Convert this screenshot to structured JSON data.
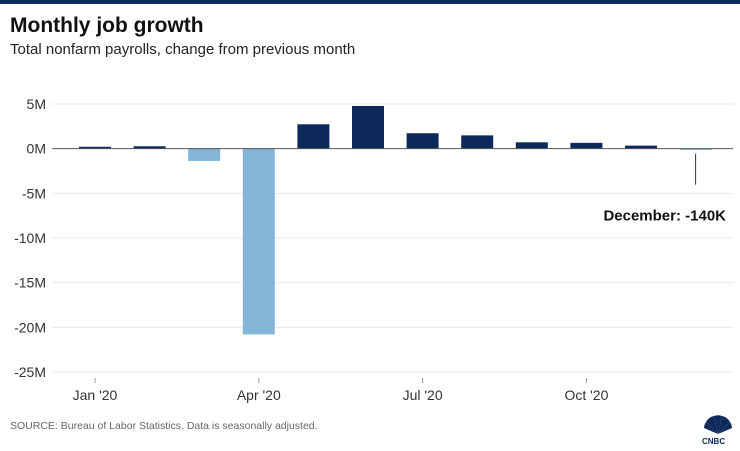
{
  "header": {
    "title": "Monthly job growth",
    "subtitle": "Total nonfarm payrolls, change from previous month"
  },
  "footer": {
    "source": "SOURCE: Bureau of Labor Statistics. Data is seasonally adjusted.",
    "logo_text": "CNBC"
  },
  "colors": {
    "positive": "#0e2a5c",
    "negative": "#85b4d9",
    "brand_bar": "#0e2a5c",
    "gridline": "#e8e8e8",
    "zeroline": "#555555"
  },
  "chart_data": {
    "type": "bar",
    "categories": [
      "Jan '20",
      "Feb '20",
      "Mar '20",
      "Apr '20",
      "May '20",
      "Jun '20",
      "Jul '20",
      "Aug '20",
      "Sep '20",
      "Oct '20",
      "Nov '20",
      "Dec '20"
    ],
    "values": [
      0.21,
      0.27,
      -1.37,
      -20.79,
      2.73,
      4.78,
      1.73,
      1.49,
      0.71,
      0.65,
      0.34,
      -0.14
    ],
    "unit": "M",
    "ylim": [
      -25,
      5
    ],
    "yticks": [
      5,
      0,
      -5,
      -10,
      -15,
      -20,
      -25
    ],
    "ytick_labels": [
      "5M",
      "0M",
      "-5M",
      "-10M",
      "-15M",
      "-20M",
      "-25M"
    ],
    "xtick_labels": [
      {
        "index": 0,
        "label": "Jan '20"
      },
      {
        "index": 3,
        "label": "Apr '20"
      },
      {
        "index": 6,
        "label": "Jul '20"
      },
      {
        "index": 9,
        "label": "Oct '20"
      }
    ],
    "annotation": {
      "index": 11,
      "text": "December: -140K"
    },
    "grid": true
  }
}
